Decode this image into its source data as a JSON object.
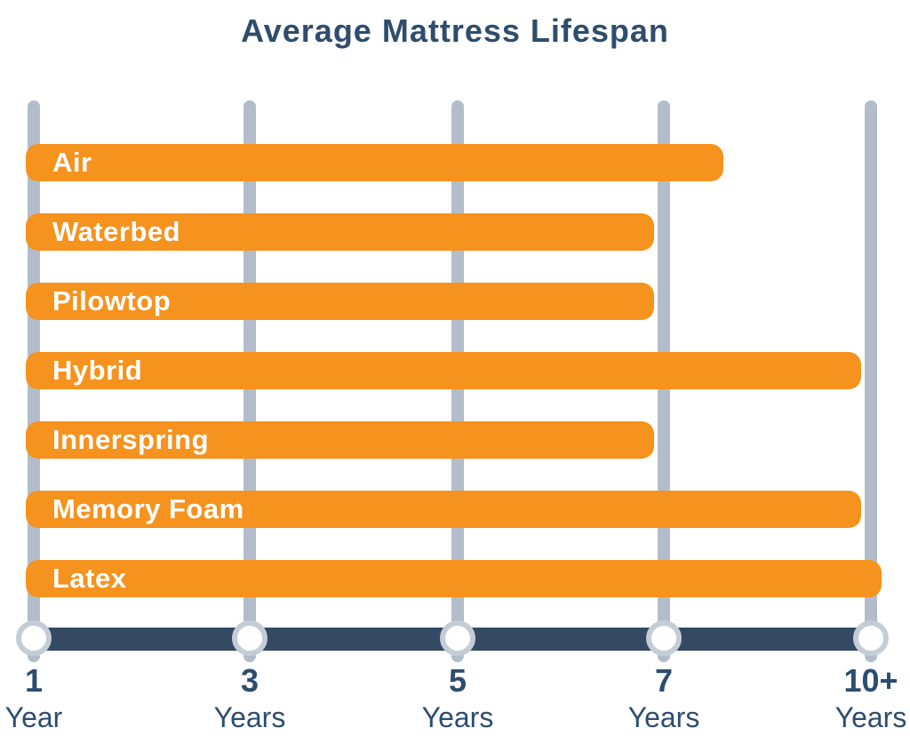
{
  "title": "Average Mattress Lifespan",
  "chart_data": {
    "type": "bar",
    "orientation": "horizontal",
    "title": "Average Mattress Lifespan",
    "categories": [
      "Air",
      "Waterbed",
      "Pilowtop",
      "Hybrid",
      "Innerspring",
      "Memory Foam",
      "Latex"
    ],
    "values": [
      8,
      7,
      7,
      10,
      7,
      10,
      10.3
    ],
    "value_labels": [
      "8 years",
      "7 years",
      "7 years",
      "10 years",
      "7 years",
      "10 years",
      "10+ years"
    ],
    "unit": "years",
    "x_axis": {
      "ticks": [
        {
          "value": 1,
          "number": "1",
          "unit": "Year"
        },
        {
          "value": 3,
          "number": "3",
          "unit": "Years"
        },
        {
          "value": 5,
          "number": "5",
          "unit": "Years"
        },
        {
          "value": 7,
          "number": "7",
          "unit": "Years"
        },
        {
          "value": 10,
          "number": "10+",
          "unit": "Years"
        }
      ],
      "ticks_evenly_spaced": true,
      "last_tick_open_ended": true
    },
    "grid": "vertical gridline at each tick",
    "legend": "none"
  },
  "colors": {
    "bar": "#F6921E",
    "bar_label_text": "#FFFFFF",
    "axis_line": "#344A63",
    "gridline": "#B3BDC9",
    "tick_marker_ring": "#C4CDD6",
    "tick_marker_fill": "#FFFFFF",
    "title_text": "#2E4D6D",
    "tick_label_text": "#2D4D6E",
    "background": "#FFFFFF"
  }
}
